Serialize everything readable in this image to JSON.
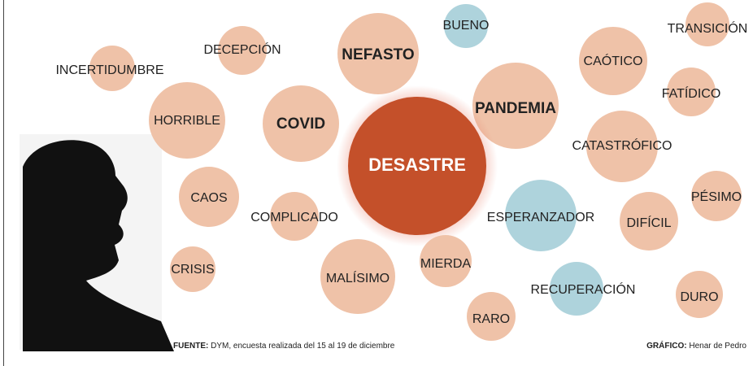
{
  "nodes": [
    {
      "label": "INCERTIDUMBRE",
      "color": "#efc2a8"
    },
    {
      "label": "DECEPCIÓN",
      "color": "#efc2a8"
    },
    {
      "label": "NEFASTO",
      "color": "#efc2a8",
      "bold": true
    },
    {
      "label": "BUENO",
      "color": "#aed3dc"
    },
    {
      "label": "TRANSICIÓN",
      "color": "#efc2a8"
    },
    {
      "label": "CAÓTICO",
      "color": "#efc2a8"
    },
    {
      "label": "FATÍDICO",
      "color": "#efc2a8"
    },
    {
      "label": "PANDEMIA",
      "color": "#efc2a8",
      "bold": true
    },
    {
      "label": "HORRIBLE",
      "color": "#efc2a8"
    },
    {
      "label": "COVID",
      "color": "#efc2a8",
      "bold": true
    },
    {
      "label": "DESASTRE",
      "color": "#c4502a",
      "bold": true
    },
    {
      "label": "CATASTRÓFICO",
      "color": "#efc2a8"
    },
    {
      "label": "CAOS",
      "color": "#efc2a8"
    },
    {
      "label": "PÉSIMO",
      "color": "#efc2a8"
    },
    {
      "label": "COMPLICADO",
      "color": "#efc2a8"
    },
    {
      "label": "ESPERANZADOR",
      "color": "#aed3dc"
    },
    {
      "label": "DIFÍCIL",
      "color": "#efc2a8"
    },
    {
      "label": "CRISIS",
      "color": "#efc2a8"
    },
    {
      "label": "MALÍSIMO",
      "color": "#efc2a8"
    },
    {
      "label": "MIERDA",
      "color": "#efc2a8"
    },
    {
      "label": "RECUPERACIÓN",
      "color": "#aed3dc"
    },
    {
      "label": "DURO",
      "color": "#efc2a8"
    },
    {
      "label": "RARO",
      "color": "#efc2a8"
    }
  ],
  "footer": {
    "source_label": "FUENTE:",
    "source_text": "DYM, encuesta realizada del 15 al 19 de diciembre",
    "credit_label": "GRÁFICO:",
    "credit_text": "Henar de Pedro"
  }
}
